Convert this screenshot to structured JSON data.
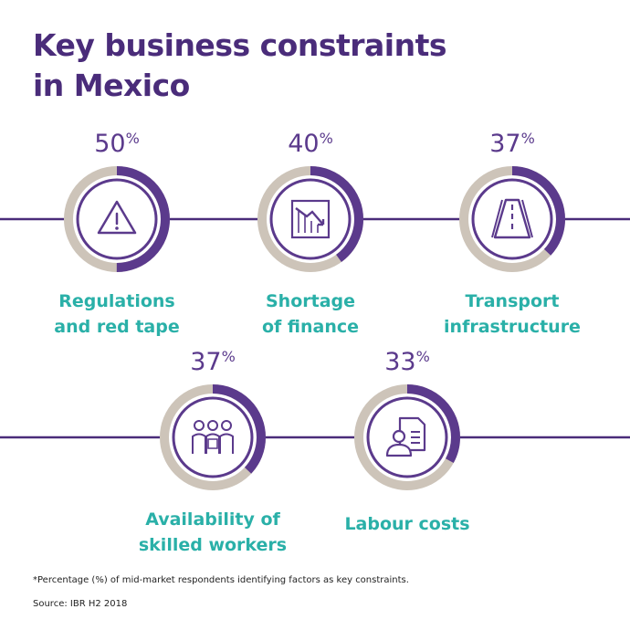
{
  "title": "Key business constraints\nin Mexico",
  "footnote": "*Percentage (%) of mid-market respondents identifying factors as key constraints.",
  "source": "Source: IBR H2 2018",
  "colors": {
    "title": "#4a2c7a",
    "accent": "#5b3a8c",
    "track": "#cdc4b9",
    "label": "#2ab0a8",
    "line": "#4a2c7a"
  },
  "chart_data": {
    "type": "donut",
    "unit": "%",
    "max": 100,
    "categories": [
      "Regulations and red tape",
      "Shortage of finance",
      "Transport infrastructure",
      "Availability of skilled workers",
      "Labour costs"
    ],
    "values": [
      50,
      40,
      37,
      37,
      33
    ],
    "items": [
      {
        "label_lines": [
          "Regulations",
          "and red tape"
        ],
        "value": 50,
        "value_text": "50",
        "icon": "warning-triangle-icon"
      },
      {
        "label_lines": [
          "Shortage",
          "of finance"
        ],
        "value": 40,
        "value_text": "40",
        "icon": "declining-chart-icon"
      },
      {
        "label_lines": [
          "Transport",
          "infrastructure"
        ],
        "value": 37,
        "value_text": "37",
        "icon": "road-icon"
      },
      {
        "label_lines": [
          "Availability of",
          "skilled workers"
        ],
        "value": 37,
        "value_text": "37",
        "icon": "workers-group-icon"
      },
      {
        "label_lines": [
          "Labour costs"
        ],
        "value": 33,
        "value_text": "33",
        "icon": "employee-document-icon"
      }
    ]
  }
}
